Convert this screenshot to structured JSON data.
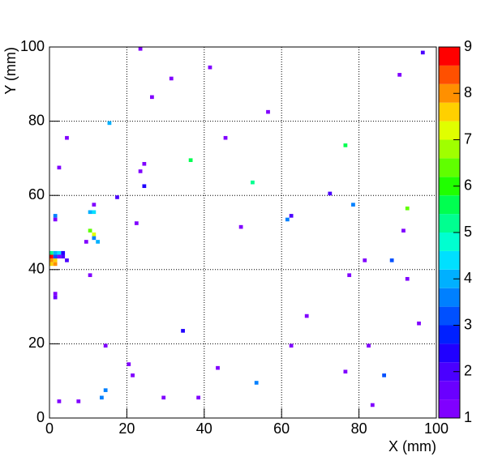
{
  "chart_data": {
    "type": "heatmap",
    "x_label": "X (mm)",
    "y_label": "Y (mm)",
    "xlim": [
      0,
      100
    ],
    "ylim": [
      0,
      100
    ],
    "zlim": [
      1,
      9
    ],
    "xticks": [
      0,
      20,
      40,
      60,
      80,
      100
    ],
    "yticks": [
      0,
      20,
      40,
      60,
      80,
      100
    ],
    "zticks": [
      1,
      2,
      3,
      4,
      5,
      6,
      7,
      8,
      9
    ],
    "grid": true,
    "bin_size": 1,
    "palette": [
      "#8000ff",
      "#6a00ff",
      "#4a00ff",
      "#2000ff",
      "#0020ff",
      "#0050ff",
      "#0080ff",
      "#00b0ff",
      "#00e0ff",
      "#00ffd0",
      "#00ff90",
      "#00ff50",
      "#20ff00",
      "#60ff00",
      "#a0ff00",
      "#e0ff00",
      "#ffd000",
      "#ff9000",
      "#ff5000",
      "#ff0000"
    ],
    "cells": [
      {
        "x": 23,
        "y": 99,
        "value": 1
      },
      {
        "x": 96,
        "y": 98,
        "value": 1.8
      },
      {
        "x": 41,
        "y": 94,
        "value": 1
      },
      {
        "x": 31,
        "y": 91,
        "value": 1
      },
      {
        "x": 90,
        "y": 92,
        "value": 1
      },
      {
        "x": 26,
        "y": 86,
        "value": 1
      },
      {
        "x": 56,
        "y": 82,
        "value": 1
      },
      {
        "x": 15,
        "y": 79,
        "value": 4
      },
      {
        "x": 4,
        "y": 75,
        "value": 1
      },
      {
        "x": 45,
        "y": 75,
        "value": 1
      },
      {
        "x": 76,
        "y": 73,
        "value": 5.4
      },
      {
        "x": 36,
        "y": 69,
        "value": 5.4
      },
      {
        "x": 24,
        "y": 68,
        "value": 1
      },
      {
        "x": 2,
        "y": 67,
        "value": 1
      },
      {
        "x": 23,
        "y": 66,
        "value": 1
      },
      {
        "x": 52,
        "y": 63,
        "value": 5
      },
      {
        "x": 24,
        "y": 62,
        "value": 2.5
      },
      {
        "x": 72,
        "y": 60,
        "value": 2
      },
      {
        "x": 17,
        "y": 59,
        "value": 2
      },
      {
        "x": 11,
        "y": 57,
        "value": 1
      },
      {
        "x": 78,
        "y": 57,
        "value": 3.5
      },
      {
        "x": 92,
        "y": 56,
        "value": 6.5
      },
      {
        "x": 10,
        "y": 55,
        "value": 4
      },
      {
        "x": 11,
        "y": 55,
        "value": 4.3
      },
      {
        "x": 1,
        "y": 54,
        "value": 3.5
      },
      {
        "x": 1,
        "y": 53,
        "value": 1
      },
      {
        "x": 62,
        "y": 54,
        "value": 2
      },
      {
        "x": 61,
        "y": 53,
        "value": 3.5
      },
      {
        "x": 22,
        "y": 52,
        "value": 1
      },
      {
        "x": 49,
        "y": 51,
        "value": 1
      },
      {
        "x": 91,
        "y": 50,
        "value": 1
      },
      {
        "x": 10,
        "y": 50,
        "value": 6.5
      },
      {
        "x": 11,
        "y": 49,
        "value": 7
      },
      {
        "x": 11,
        "y": 48,
        "value": 3.5
      },
      {
        "x": 12,
        "y": 47,
        "value": 4
      },
      {
        "x": 9,
        "y": 47,
        "value": 1
      },
      {
        "x": 0,
        "y": 44,
        "value": 5
      },
      {
        "x": 1,
        "y": 44,
        "value": 4
      },
      {
        "x": 2,
        "y": 44,
        "value": 4.5
      },
      {
        "x": 3,
        "y": 44,
        "value": 2.5
      },
      {
        "x": 0,
        "y": 43,
        "value": 8.8
      },
      {
        "x": 1,
        "y": 43,
        "value": 3
      },
      {
        "x": 2,
        "y": 43,
        "value": 1
      },
      {
        "x": 3,
        "y": 43,
        "value": 2
      },
      {
        "x": 0,
        "y": 42,
        "value": 8
      },
      {
        "x": 1,
        "y": 42,
        "value": 7.6
      },
      {
        "x": 4,
        "y": 42,
        "value": 2
      },
      {
        "x": 0,
        "y": 41,
        "value": 7.6
      },
      {
        "x": 1,
        "y": 41,
        "value": 8
      },
      {
        "x": 81,
        "y": 42,
        "value": 1
      },
      {
        "x": 88,
        "y": 42,
        "value": 3
      },
      {
        "x": 10,
        "y": 38,
        "value": 1
      },
      {
        "x": 77,
        "y": 38,
        "value": 1
      },
      {
        "x": 92,
        "y": 37,
        "value": 1
      },
      {
        "x": 1,
        "y": 33,
        "value": 1
      },
      {
        "x": 1,
        "y": 32,
        "value": 1.5
      },
      {
        "x": 66,
        "y": 27,
        "value": 1
      },
      {
        "x": 95,
        "y": 25,
        "value": 1
      },
      {
        "x": 34,
        "y": 23,
        "value": 2.5
      },
      {
        "x": 14,
        "y": 19,
        "value": 1
      },
      {
        "x": 62,
        "y": 19,
        "value": 1
      },
      {
        "x": 82,
        "y": 19,
        "value": 1
      },
      {
        "x": 20,
        "y": 14,
        "value": 1
      },
      {
        "x": 43,
        "y": 13,
        "value": 1
      },
      {
        "x": 76,
        "y": 12,
        "value": 1
      },
      {
        "x": 21,
        "y": 11,
        "value": 1
      },
      {
        "x": 86,
        "y": 11,
        "value": 3
      },
      {
        "x": 53,
        "y": 9,
        "value": 3.5
      },
      {
        "x": 14,
        "y": 7,
        "value": 3.5
      },
      {
        "x": 13,
        "y": 5,
        "value": 3.5
      },
      {
        "x": 29,
        "y": 5,
        "value": 1
      },
      {
        "x": 38,
        "y": 5,
        "value": 1
      },
      {
        "x": 2,
        "y": 4,
        "value": 1
      },
      {
        "x": 7,
        "y": 4,
        "value": 1
      },
      {
        "x": 83,
        "y": 3,
        "value": 1
      }
    ]
  }
}
